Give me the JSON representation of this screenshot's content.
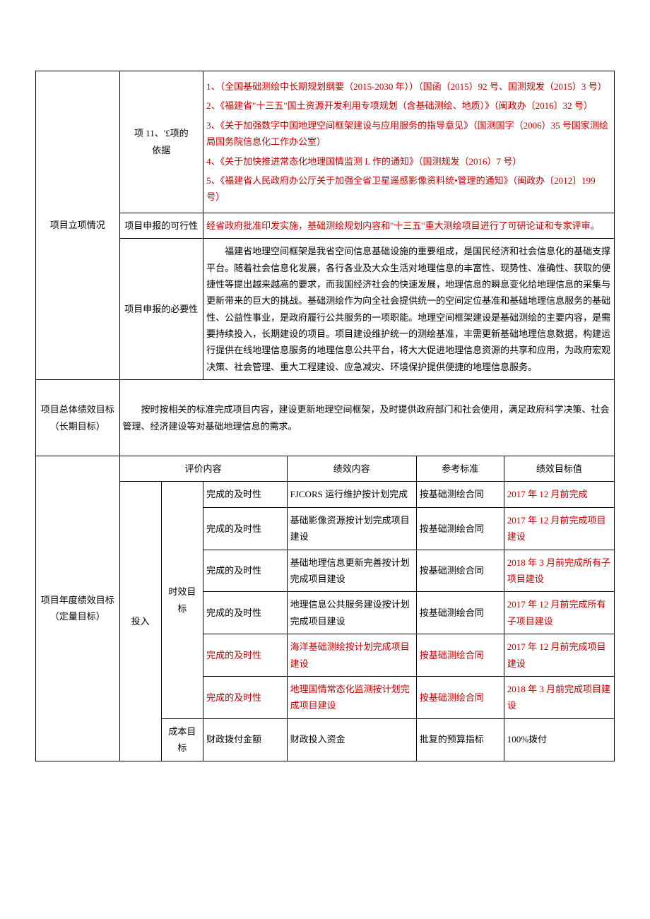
{
  "row1": {
    "col1": "项目立项情况",
    "basis_label": "项 11、'£项的\n依据",
    "basis_items": [
      "1、（全国基础测绘中长期规划纲要（2015-2030 年））（国函（2015）92 号、国测规发（2015）3 号）",
      "2、《福建省\"十三五\"国土资源开发利用专项规划（含基础测绘、地质）》（闽政办〔2016〕32 号）",
      "3、《关于加强数字中国地理空间框架建设与应用服务的指导意见》（国测国字（2006）35 号国家测绘局国务院信息化工作办公室）",
      "4、《关于加快推进常态化地理国情监测 L 作的通知》（国测规发（2016）7 号）",
      "5、《福建省人民政府办公厅关于加强全省卫星遥感影像资料统•管理的通知》（闽政办〔2012〕199 号）"
    ],
    "feasibility_label": "项目申报的可行性",
    "feasibility_text": "经省政府批准印发实施，基础测绘规划内容和\"十三五\"重大测绘项目进行了可研论证和专家评审。",
    "necessity_label": "项目申报的必要性",
    "necessity_text": "福建省地理空间框架是我省空间信息基础设施的重要组成，是国民经济和社会信息化的基础支撑平台。随着社会信息化发展，各行各业及大众生活对地理信息的丰富性、现势性、准确性、获取的便捷性等提出越来越高的要求，而我国经济社会的快速发展，地理信息的瞬息变化给地理信息的采集与更新带来的巨大的挑战。基础测绘作为向全社会提供统一的空间定位基准和基础地理信息服务的基础性、公益性事业，是政府履行公共服务的一项职能。地理空间框架建设是基础测绘的主要内容，是需要持续投入，长期建设的项目。项目建设维护统一的测绘基准，丰需更新基础地理信息数据，构建运行提供在线地理信息服务的地理信息公共平台，将大大促进地理信息资源的共享和应用，为政府宏观决策、社会管理、重大工程建设、应急减灾、环境保护提供便捷的地理信息服务。"
  },
  "overall": {
    "label": "项目总体绩效目标（长期目标）",
    "text": "按时按相关的标准完成项目内容，建设更新地理空间框架，及时提供政府部门和社会使用，满足政府科学决策、社会管理、经济建设等对基础地理信息的需求。"
  },
  "annual": {
    "label": "项目年度绩效目标（定量目标）",
    "hdr": {
      "eval": "评价内容",
      "perf": "绩效内容",
      "std": "参考标准",
      "target": "绩效目标值"
    },
    "input": "投入",
    "time_goal": "时效目标",
    "cost_goal": "成本目标",
    "rows": [
      {
        "c3": "完成的及时性",
        "c4": "FJCORS 运行维护按计划完成",
        "c5": "按基础测绘合同",
        "c6": "2017 年 12 月前完成",
        "red": false
      },
      {
        "c3": "完成的及时性",
        "c4": "基础影像资源按计划完成项目建设",
        "c5": "按基础测绘合同",
        "c6": "2017 年 12 月前完成项目建设",
        "red": false
      },
      {
        "c3": "完成的及时性",
        "c4": "基础地理信息更新完善按计划完成项目建设",
        "c5": "按基础测绘合同",
        "c6": "2018 年 3 月前完成所有子项目建设",
        "red": false
      },
      {
        "c3": "完成的及时性",
        "c4": "地理信息公共服务建设按计划完成项目建设",
        "c5": "按基础测绘合同",
        "c6": "2017 年 12 月前完成所有子项目建设",
        "red": false
      },
      {
        "c3": "完成的及时性",
        "c4": "海洋基础测绘按计划完成项目建设",
        "c5": "按基础测绘合同",
        "c6": "2017 年 12 月前完成项目建设",
        "red": true
      },
      {
        "c3": "完成的及时性",
        "c4": "地理国情常态化监测按计划完成项目建设",
        "c5": "按基础测绘合同",
        "c6": "2018 年 3 月前完成项目建设",
        "red": true
      }
    ],
    "cost_row": {
      "c3": "财政拨付金额",
      "c4": "财政投入资金",
      "c5": "批复的预算指标",
      "c6": "100%拨付"
    }
  }
}
